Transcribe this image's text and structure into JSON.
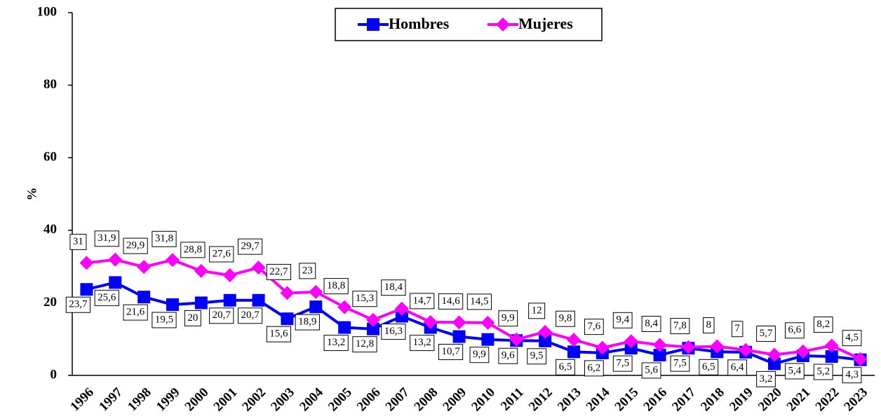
{
  "chart_data": {
    "type": "line",
    "y_label": "%",
    "categories": [
      "1996",
      "1997",
      "1998",
      "1999",
      "2000",
      "2001",
      "2002",
      "2003",
      "2004",
      "2005",
      "2006",
      "2007",
      "2008",
      "2009",
      "2010",
      "2011",
      "2012",
      "2013",
      "2014",
      "2015",
      "2016",
      "2017",
      "2018",
      "2019",
      "2020",
      "2021",
      "2022",
      "2023"
    ],
    "series": [
      {
        "name": "Hombres",
        "color": "#0000ff",
        "marker": "square",
        "values": [
          23.7,
          25.6,
          21.6,
          19.5,
          20,
          20.7,
          20.7,
          15.6,
          18.9,
          13.2,
          12.8,
          16.3,
          13.2,
          10.7,
          9.9,
          9.6,
          9.5,
          6.5,
          6.2,
          7.5,
          5.6,
          7.5,
          6.5,
          6.4,
          3.2,
          5.4,
          5.2,
          4.3
        ],
        "value_labels": [
          "23,7",
          "25,6",
          "21,6",
          "19,5",
          "20",
          "20,7",
          "20,7",
          "15,6",
          "18,9",
          "13,2",
          "12,8",
          "16,3",
          "13,2",
          "10,7",
          "9,9",
          "9,6",
          "9,5",
          "6,5",
          "6,2",
          "7,5",
          "5,6",
          "7,5",
          "6,5",
          "6,4",
          "3,2",
          "5,4",
          "5,2",
          "4,3"
        ]
      },
      {
        "name": "Mujeres",
        "color": "#ff00ff",
        "marker": "diamond",
        "values": [
          31,
          31.9,
          29.9,
          31.8,
          28.8,
          27.6,
          29.7,
          22.7,
          23,
          18.8,
          15.3,
          18.4,
          14.7,
          14.6,
          14.5,
          9.9,
          12,
          9.8,
          7.6,
          9.4,
          8.4,
          7.8,
          8,
          7,
          5.7,
          6.6,
          8.2,
          4.5
        ],
        "value_labels": [
          "31",
          "31,9",
          "29,9",
          "31,8",
          "28,8",
          "27,6",
          "29,7",
          "22,7",
          "23",
          "18,8",
          "15,3",
          "18,4",
          "14,7",
          "14,6",
          "14,5",
          "9,9",
          "12",
          "9,8",
          "7,6",
          "9,4",
          "8,4",
          "7,8",
          "8",
          "7",
          "5,7",
          "6,6",
          "8,2",
          "4,5"
        ]
      }
    ],
    "ylim": [
      0,
      100
    ],
    "yticks": [
      0,
      20,
      40,
      60,
      80,
      100
    ]
  }
}
